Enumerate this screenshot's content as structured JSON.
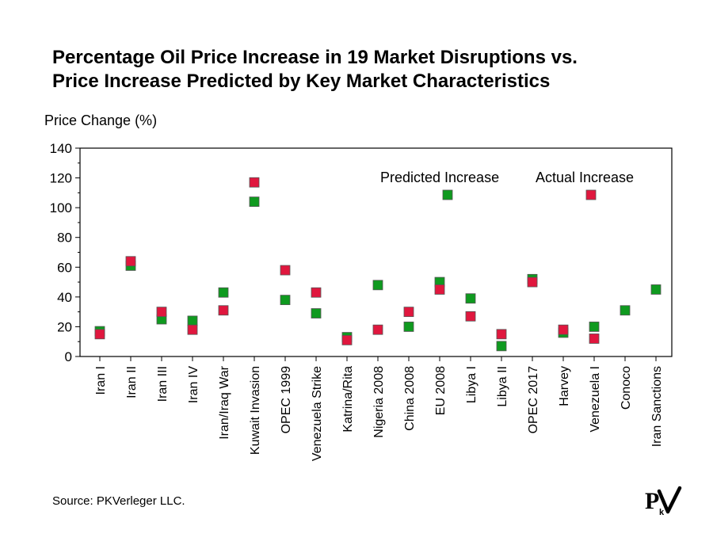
{
  "chart_data": {
    "type": "scatter",
    "title_lines": [
      "Percentage Oil Price Increase in 19 Market Disruptions vs.",
      "Price Increase Predicted by Key Market Characteristics"
    ],
    "ylabel": "Price Change (%)",
    "ylim": [
      0,
      140
    ],
    "yticks": [
      0,
      20,
      40,
      60,
      80,
      100,
      120,
      140
    ],
    "categories": [
      "Iran I",
      "Iran II",
      "Iran III",
      "Iran IV",
      "Iran/Iraq War",
      "Kuwait Invasion",
      "OPEC 1999",
      "Venezuela Strike",
      "Katrina/Rita",
      "Nigeria 2008",
      "China 2008",
      "EU 2008",
      "Libya I",
      "Libya II",
      "OPEC 2017",
      "Harvey",
      "Venezuela I",
      "Conoco",
      "Iran Sanctions"
    ],
    "series": [
      {
        "name": "Predicted Increase",
        "color": "#0f9a1f",
        "values": [
          17,
          61,
          25,
          24,
          43,
          104,
          38,
          29,
          13,
          48,
          20,
          50,
          39,
          7,
          52,
          16,
          20,
          31,
          45
        ]
      },
      {
        "name": "Actual Increase",
        "color": "#e0173e",
        "values": [
          15,
          64,
          30,
          18,
          31,
          117,
          58,
          43,
          11,
          18,
          30,
          45,
          27,
          15,
          50,
          18,
          12,
          null,
          null
        ]
      }
    ],
    "grid": false,
    "legend_placement": "inside top-right"
  },
  "source": "Source: PKVerleger LLC.",
  "logo": {
    "text_p": "P",
    "text_k": "k",
    "text_v": "V"
  }
}
